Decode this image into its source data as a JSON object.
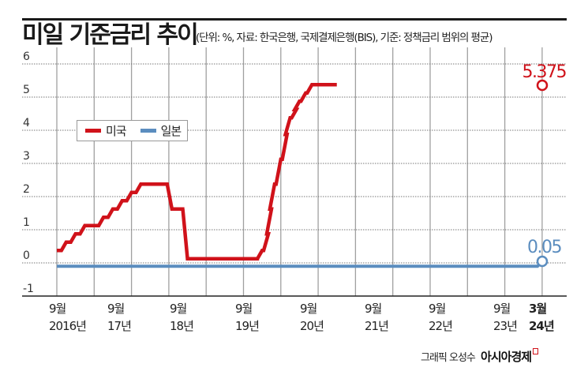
{
  "header": {
    "title": "미일 기준금리 추이",
    "subtitle": "(단위: %, 자료: 한국은행, 국제결제은행(BIS), 기준: 정책금리 범위의 평균)"
  },
  "legend": {
    "items": [
      {
        "label": "미국",
        "color": "#d0121a"
      },
      {
        "label": "일본",
        "color": "#5b8dbf"
      }
    ]
  },
  "annotations": {
    "us_end": "5.375",
    "jp_end": "0.05"
  },
  "footer": {
    "credit": "그래픽 오성수",
    "brand": "아시아경제"
  },
  "chart_data": {
    "type": "line",
    "title": "미일 기준금리 추이",
    "subtitle": "(단위: %, 자료: 한국은행, 국제결제은행(BIS), 기준: 정책금리 범위의 평균)",
    "xlabel": "",
    "ylabel": "%",
    "ylim": [
      -1,
      6
    ],
    "yticks": [
      "6",
      "5",
      "4",
      "3",
      "2",
      "1",
      "0",
      "-1"
    ],
    "xticks": [
      {
        "line1": "9월",
        "line2": "2016년"
      },
      {
        "line1": "9월",
        "line2": "17년"
      },
      {
        "line1": "9월",
        "line2": "18년"
      },
      {
        "line1": "9월",
        "line2": "19년"
      },
      {
        "line1": "9월",
        "line2": "20년"
      },
      {
        "line1": "9월",
        "line2": "21년"
      },
      {
        "line1": "9월",
        "line2": "22년"
      },
      {
        "line1": "9월",
        "line2": "23년"
      },
      {
        "line1": "3월",
        "line2": "24년"
      }
    ],
    "grid": {
      "horizontal": "dotted",
      "vertical": "solid"
    },
    "legend_position": "upper-left",
    "series": [
      {
        "name": "미국",
        "color": "#d0121a",
        "points": [
          [
            "2016-09",
            0.375
          ],
          [
            "2016-12",
            0.625
          ],
          [
            "2017-03",
            0.875
          ],
          [
            "2017-06",
            1.125
          ],
          [
            "2017-12",
            1.375
          ],
          [
            "2018-03",
            1.625
          ],
          [
            "2018-06",
            1.875
          ],
          [
            "2018-09",
            2.125
          ],
          [
            "2018-12",
            2.375
          ],
          [
            "2019-07",
            2.375
          ],
          [
            "2019-10",
            1.625
          ],
          [
            "2020-02",
            1.625
          ],
          [
            "2020-03",
            0.125
          ],
          [
            "2022-02",
            0.125
          ],
          [
            "2022-03",
            0.375
          ],
          [
            "2022-05",
            0.875
          ],
          [
            "2022-06",
            1.625
          ],
          [
            "2022-07",
            2.375
          ],
          [
            "2022-09",
            3.125
          ],
          [
            "2022-11",
            3.875
          ],
          [
            "2022-12",
            4.375
          ],
          [
            "2023-02",
            4.625
          ],
          [
            "2023-03",
            4.875
          ],
          [
            "2023-05",
            5.125
          ],
          [
            "2023-07",
            5.375
          ],
          [
            "2024-03",
            5.375
          ]
        ],
        "end_value": 5.375
      },
      {
        "name": "일본",
        "color": "#5b8dbf",
        "points": [
          [
            "2016-09",
            -0.1
          ],
          [
            "2024-02",
            -0.1
          ],
          [
            "2024-03",
            0.05
          ]
        ],
        "end_value": 0.05
      }
    ]
  }
}
